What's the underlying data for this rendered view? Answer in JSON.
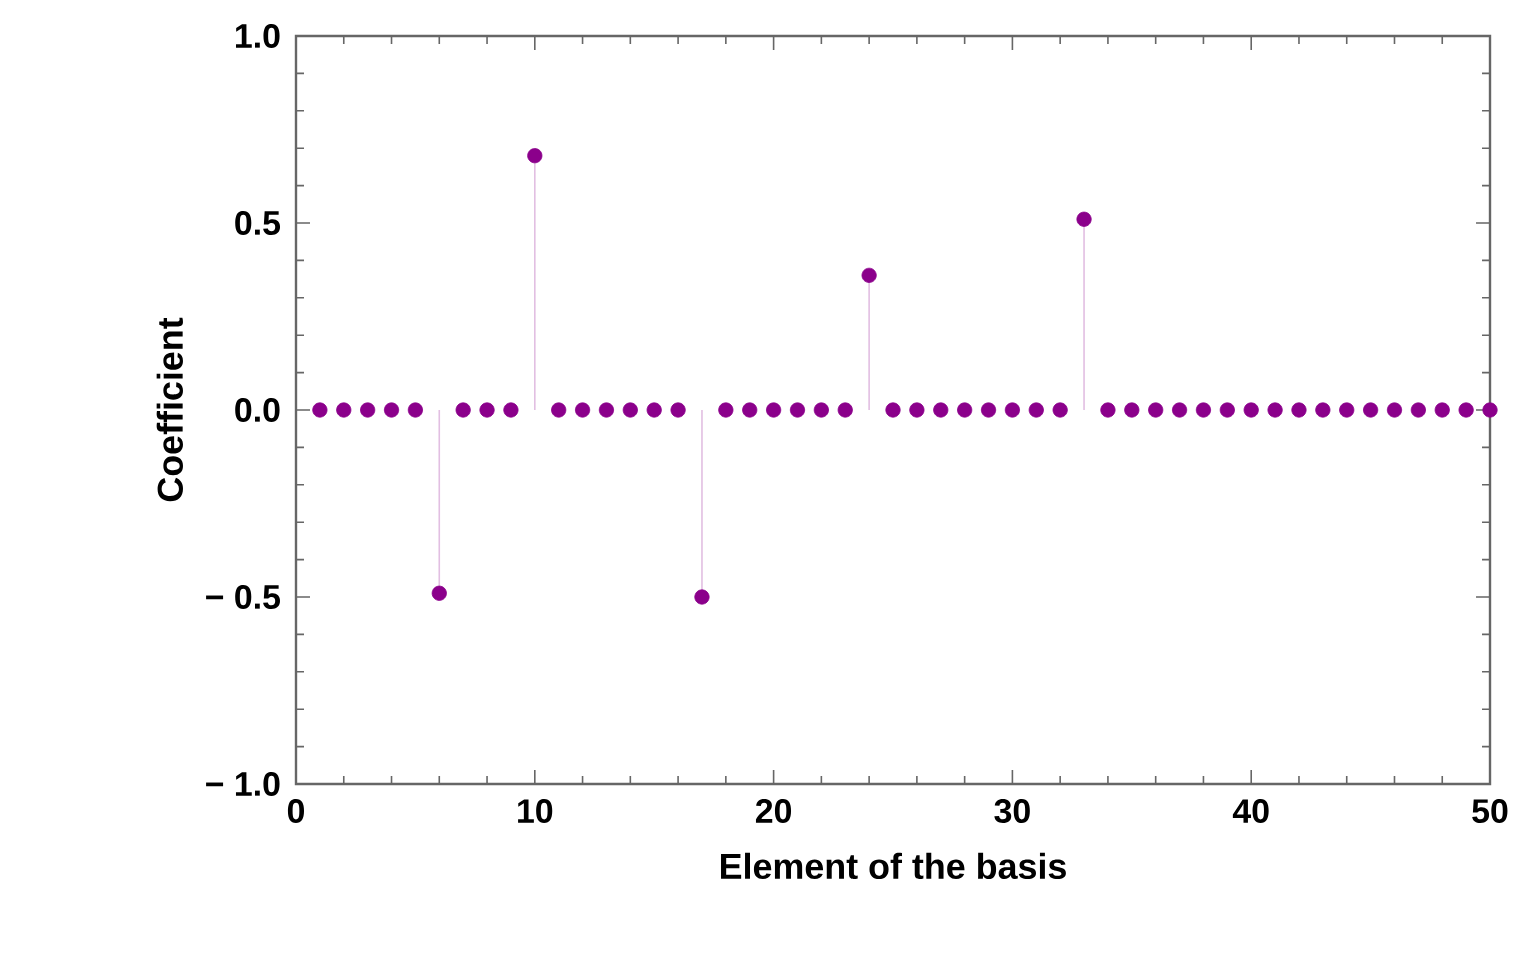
{
  "chart_data": {
    "type": "lollipop",
    "xlabel": "Element of the basis",
    "ylabel": "Coefficient",
    "x": [
      1,
      2,
      3,
      4,
      5,
      6,
      7,
      8,
      9,
      10,
      11,
      12,
      13,
      14,
      15,
      16,
      17,
      18,
      19,
      20,
      21,
      22,
      23,
      24,
      25,
      26,
      27,
      28,
      29,
      30,
      31,
      32,
      33,
      34,
      35,
      36,
      37,
      38,
      39,
      40,
      41,
      42,
      43,
      44,
      45,
      46,
      47,
      48,
      49,
      50
    ],
    "values": [
      0,
      0,
      0,
      0,
      0,
      -0.49,
      0,
      0,
      0,
      0.68,
      0,
      0,
      0,
      0,
      0,
      0,
      -0.5,
      0,
      0,
      0,
      0,
      0,
      0,
      0.36,
      0,
      0,
      0,
      0,
      0,
      0,
      0,
      0,
      0.51,
      0,
      0,
      0,
      0,
      0,
      0,
      0,
      0,
      0,
      0,
      0,
      0,
      0,
      0,
      0,
      0,
      0
    ],
    "color": "#8b008b",
    "xlim": [
      0,
      50
    ],
    "xticks": [
      0,
      10,
      20,
      30,
      40,
      50
    ],
    "ylim": [
      -1,
      1
    ],
    "yticks": [
      {
        "value": -1,
        "label": "− 1.0"
      },
      {
        "value": -0.5,
        "label": "− 0.5"
      },
      {
        "value": 0,
        "label": "0.0"
      },
      {
        "value": 0.5,
        "label": "0.5"
      },
      {
        "value": 1,
        "label": "1.0"
      }
    ]
  }
}
